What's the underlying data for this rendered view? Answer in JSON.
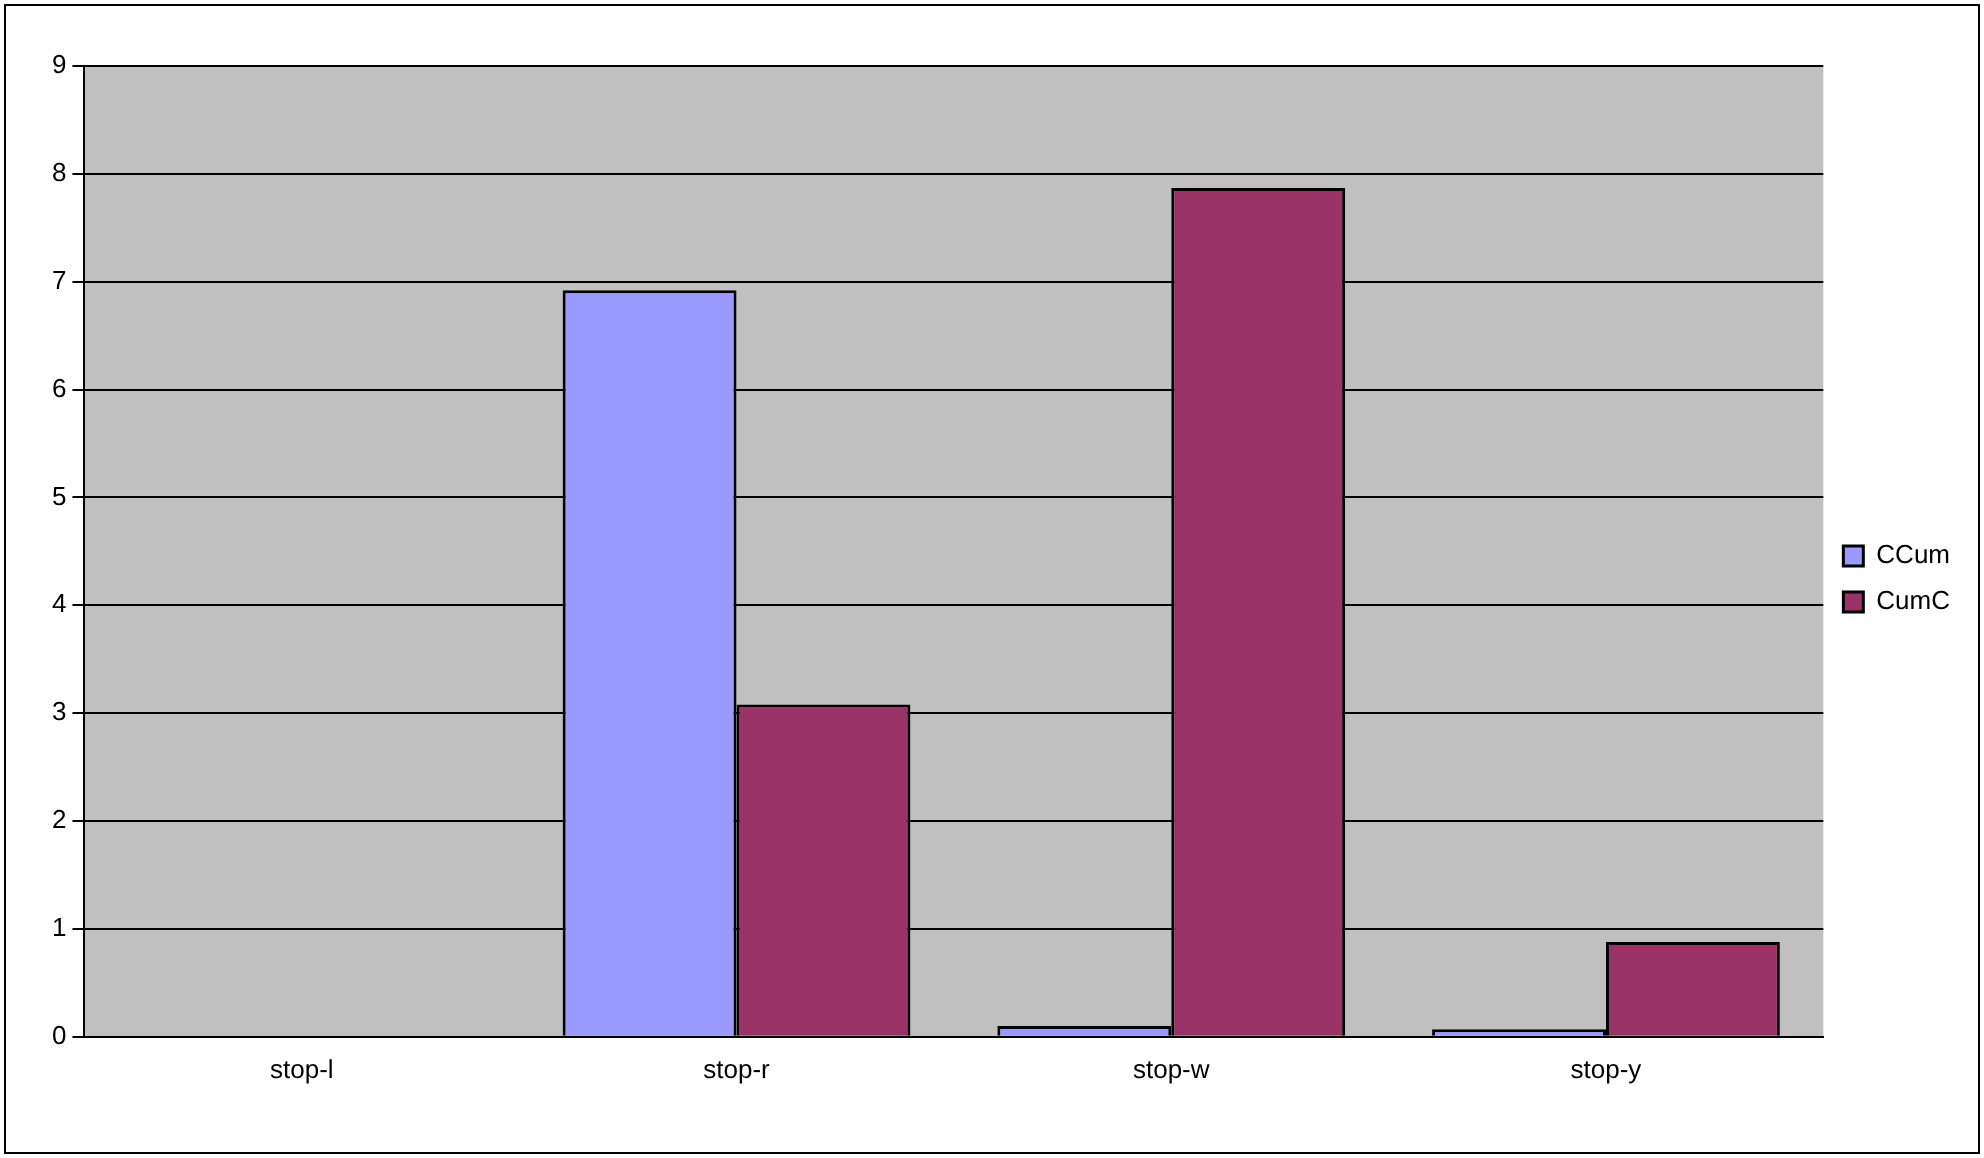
{
  "chart_data": {
    "type": "bar",
    "categories": [
      "stop-l",
      "stop-r",
      "stop-w",
      "stop-y"
    ],
    "series": [
      {
        "name": "CCum",
        "color": "#9999ff",
        "values": [
          0,
          6.92,
          0.1,
          0.07
        ]
      },
      {
        "name": "CumC",
        "color": "#993366",
        "values": [
          0,
          3.08,
          7.87,
          0.88
        ]
      }
    ],
    "ylim": [
      0,
      9
    ],
    "yticks": [
      0,
      1,
      2,
      3,
      4,
      5,
      6,
      7,
      8,
      9
    ],
    "grid": "y",
    "legend": "right"
  }
}
